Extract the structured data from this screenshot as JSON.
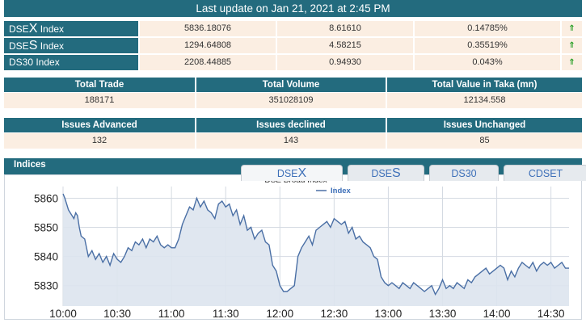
{
  "banner": {
    "text": "Last update on Jan 21, 2021 at 2:45 PM"
  },
  "indices": [
    {
      "name_prefix": "DSE",
      "name_big": "X",
      "name_suffix": " Index",
      "value": "5836.18076",
      "change": "8.61610",
      "percent": "0.14785%",
      "arrow": "⇑"
    },
    {
      "name_prefix": "DSE",
      "name_big": "S",
      "name_suffix": " Index",
      "value": "1294.64808",
      "change": "4.58215",
      "percent": "0.35519%",
      "arrow": "⇑"
    },
    {
      "name_prefix": "DS30 Index",
      "name_big": "",
      "name_suffix": "",
      "value": "2208.44885",
      "change": "0.94930",
      "percent": "0.043%",
      "arrow": "⇑"
    }
  ],
  "trade": {
    "headers": [
      "Total Trade",
      "Total Volume",
      "Total Value in Taka (mn)"
    ],
    "values": [
      "188171",
      "351028109",
      "12134.558"
    ]
  },
  "issues": {
    "headers": [
      "Issues Advanced",
      "Issues declined",
      "Issues Unchanged"
    ],
    "values": [
      "132",
      "143",
      "85"
    ]
  },
  "indices_panel": {
    "label": "Indices",
    "tabs": [
      {
        "prefix": "DSE",
        "big": "X",
        "suffix": ""
      },
      {
        "prefix": "DSE",
        "big": "S",
        "suffix": ""
      },
      {
        "prefix": "DS30",
        "big": "",
        "suffix": ""
      },
      {
        "prefix": "CDSET",
        "big": "",
        "suffix": ""
      }
    ]
  },
  "colors": {
    "header": "#236b7e",
    "cell": "#fbeee2",
    "line": "#4a6fa5",
    "area": "#dde4ee",
    "up": "#1a9a1a"
  },
  "chart_data": {
    "type": "area",
    "title": "DSE Broad Index",
    "legend": "Index",
    "x_ticks": [
      "10:00",
      "10:30",
      "11:00",
      "11:30",
      "12:00",
      "12:30",
      "13:00",
      "13:30",
      "14:00",
      "14:30"
    ],
    "y_ticks": [
      5830,
      5840,
      5850,
      5860
    ],
    "ylim": [
      5823,
      5864
    ],
    "xlim_minutes": [
      0,
      280
    ],
    "grid": true,
    "x": [
      0,
      1,
      2,
      3,
      4,
      5,
      6,
      7,
      8,
      9,
      10,
      12,
      14,
      16,
      18,
      20,
      22,
      24,
      26,
      28,
      30,
      32,
      34,
      36,
      38,
      40,
      42,
      44,
      46,
      48,
      50,
      52,
      54,
      56,
      58,
      60,
      62,
      64,
      66,
      68,
      70,
      72,
      74,
      76,
      78,
      80,
      82,
      84,
      86,
      88,
      90,
      92,
      94,
      96,
      98,
      100,
      102,
      104,
      106,
      108,
      110,
      112,
      114,
      116,
      118,
      120,
      122,
      124,
      126,
      128,
      130,
      132,
      134,
      136,
      138,
      140,
      142,
      144,
      146,
      148,
      150,
      152,
      154,
      156,
      158,
      160,
      162,
      164,
      166,
      168,
      170,
      172,
      174,
      176,
      178,
      180,
      182,
      184,
      186,
      188,
      190,
      192,
      194,
      196,
      198,
      200,
      202,
      204,
      206,
      208,
      210,
      212,
      214,
      216,
      218,
      220,
      222,
      224,
      226,
      228,
      230,
      232,
      234,
      236,
      238,
      240,
      242,
      244,
      246,
      248,
      250,
      252,
      254,
      256,
      258,
      260,
      262,
      264,
      266,
      268,
      270,
      272,
      274,
      276,
      278,
      280
    ],
    "y": [
      5861.5,
      5860,
      5858,
      5856,
      5855,
      5854,
      5853,
      5855,
      5854,
      5850,
      5847,
      5846,
      5840,
      5842,
      5839,
      5841,
      5838,
      5840,
      5837,
      5841,
      5839,
      5838,
      5840,
      5843,
      5842,
      5845,
      5844,
      5846,
      5843,
      5846,
      5845,
      5847,
      5844,
      5843,
      5844,
      5843,
      5843,
      5846,
      5851,
      5854,
      5857,
      5856,
      5860,
      5857,
      5859,
      5856,
      5855,
      5853,
      5858,
      5859,
      5857,
      5858,
      5854,
      5856,
      5851,
      5854,
      5849,
      5850,
      5846,
      5848,
      5849,
      5845,
      5844,
      5837,
      5835,
      5830,
      5828,
      5828,
      5829,
      5830,
      5840,
      5843,
      5845,
      5847,
      5844,
      5849,
      5850,
      5851,
      5852,
      5850,
      5853,
      5852,
      5851,
      5852,
      5848,
      5850,
      5846,
      5847,
      5845,
      5844,
      5843,
      5840,
      5839,
      5833,
      5831,
      5830,
      5831,
      5830,
      5829,
      5831,
      5830,
      5829,
      5831,
      5830,
      5829,
      5828,
      5829,
      5830,
      5827,
      5829,
      5832,
      5829,
      5830,
      5829,
      5831,
      5830,
      5829,
      5832,
      5831,
      5833,
      5834,
      5835,
      5836,
      5834,
      5835,
      5836,
      5837,
      5836,
      5832,
      5835,
      5833,
      5836,
      5838,
      5837,
      5836,
      5838,
      5835,
      5837,
      5838,
      5837,
      5838,
      5836,
      5837,
      5838,
      5836,
      5836
    ]
  }
}
